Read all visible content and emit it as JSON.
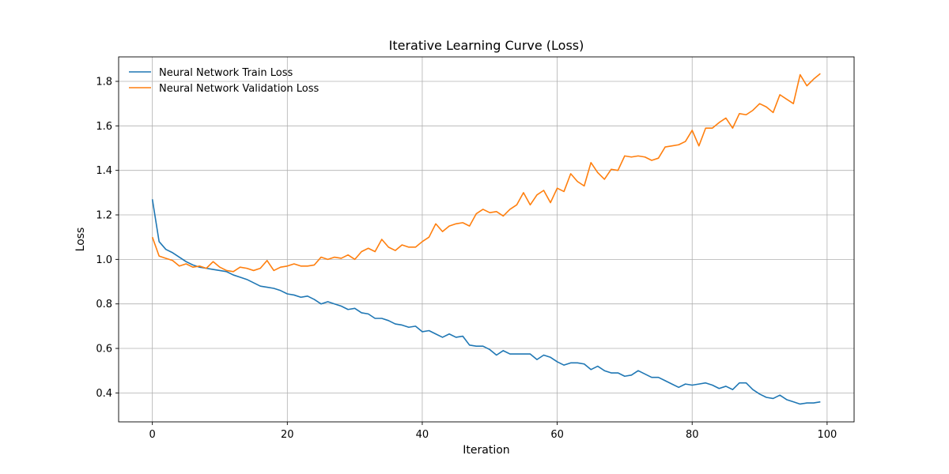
{
  "chart_data": {
    "type": "line",
    "title": "Iterative Learning Curve (Loss)",
    "xlabel": "Iteration",
    "ylabel": "Loss",
    "xlim": [
      -5,
      104
    ],
    "ylim": [
      0.27,
      1.91
    ],
    "xticks": [
      0,
      20,
      40,
      60,
      80,
      100
    ],
    "yticks": [
      0.4,
      0.6,
      0.8,
      1.0,
      1.2,
      1.4,
      1.6,
      1.8
    ],
    "grid": true,
    "legend_position": "top-left",
    "colors": {
      "train": "#1f77b4",
      "validation": "#ff7f0e"
    },
    "x": [
      0,
      1,
      2,
      3,
      4,
      5,
      6,
      7,
      8,
      9,
      10,
      11,
      12,
      13,
      14,
      15,
      16,
      17,
      18,
      19,
      20,
      21,
      22,
      23,
      24,
      25,
      26,
      27,
      28,
      29,
      30,
      31,
      32,
      33,
      34,
      35,
      36,
      37,
      38,
      39,
      40,
      41,
      42,
      43,
      44,
      45,
      46,
      47,
      48,
      49,
      50,
      51,
      52,
      53,
      54,
      55,
      56,
      57,
      58,
      59,
      60,
      61,
      62,
      63,
      64,
      65,
      66,
      67,
      68,
      69,
      70,
      71,
      72,
      73,
      74,
      75,
      76,
      77,
      78,
      79,
      80,
      81,
      82,
      83,
      84,
      85,
      86,
      87,
      88,
      89,
      90,
      91,
      92,
      93,
      94,
      95,
      96,
      97,
      98,
      99
    ],
    "series": [
      {
        "name": "Neural Network Train Loss",
        "values": [
          1.27,
          1.08,
          1.045,
          1.03,
          1.01,
          0.99,
          0.975,
          0.965,
          0.96,
          0.955,
          0.95,
          0.945,
          0.93,
          0.92,
          0.91,
          0.895,
          0.88,
          0.875,
          0.87,
          0.86,
          0.845,
          0.84,
          0.83,
          0.835,
          0.82,
          0.8,
          0.81,
          0.8,
          0.79,
          0.775,
          0.78,
          0.76,
          0.755,
          0.735,
          0.735,
          0.725,
          0.71,
          0.705,
          0.695,
          0.7,
          0.675,
          0.68,
          0.665,
          0.65,
          0.665,
          0.65,
          0.655,
          0.615,
          0.61,
          0.61,
          0.595,
          0.57,
          0.59,
          0.575,
          0.575,
          0.575,
          0.575,
          0.55,
          0.57,
          0.56,
          0.54,
          0.525,
          0.535,
          0.535,
          0.53,
          0.505,
          0.52,
          0.5,
          0.49,
          0.49,
          0.475,
          0.48,
          0.5,
          0.485,
          0.47,
          0.47,
          0.455,
          0.44,
          0.425,
          0.44,
          0.435,
          0.44,
          0.445,
          0.435,
          0.42,
          0.43,
          0.415,
          0.445,
          0.445,
          0.415,
          0.395,
          0.38,
          0.375,
          0.39,
          0.37,
          0.36,
          0.35,
          0.355,
          0.355,
          0.36
        ]
      },
      {
        "name": "Neural Network Validation Loss",
        "values": [
          1.1,
          1.015,
          1.005,
          0.995,
          0.97,
          0.98,
          0.965,
          0.97,
          0.96,
          0.99,
          0.965,
          0.95,
          0.945,
          0.965,
          0.96,
          0.95,
          0.96,
          0.995,
          0.95,
          0.965,
          0.97,
          0.98,
          0.97,
          0.97,
          0.975,
          1.01,
          1.0,
          1.01,
          1.005,
          1.02,
          1.0,
          1.035,
          1.05,
          1.035,
          1.09,
          1.055,
          1.04,
          1.065,
          1.055,
          1.055,
          1.08,
          1.1,
          1.16,
          1.125,
          1.15,
          1.16,
          1.165,
          1.15,
          1.205,
          1.225,
          1.21,
          1.215,
          1.195,
          1.225,
          1.245,
          1.3,
          1.245,
          1.29,
          1.31,
          1.255,
          1.32,
          1.305,
          1.385,
          1.35,
          1.33,
          1.435,
          1.39,
          1.36,
          1.405,
          1.4,
          1.465,
          1.46,
          1.465,
          1.46,
          1.445,
          1.455,
          1.505,
          1.51,
          1.515,
          1.53,
          1.58,
          1.51,
          1.59,
          1.59,
          1.615,
          1.635,
          1.59,
          1.655,
          1.65,
          1.67,
          1.7,
          1.685,
          1.66,
          1.74,
          1.72,
          1.7,
          1.83,
          1.78,
          1.81,
          1.835
        ]
      }
    ]
  }
}
